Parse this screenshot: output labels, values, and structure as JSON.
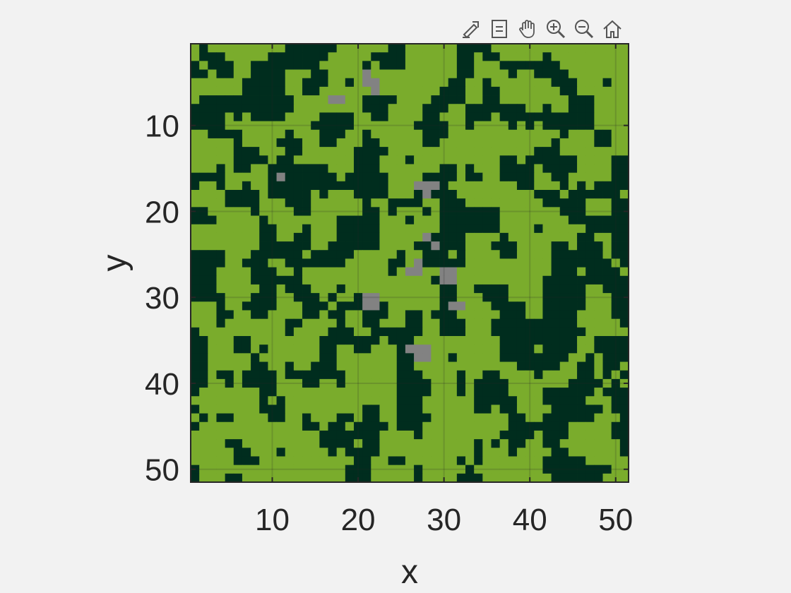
{
  "toolbar": {
    "items": [
      {
        "name": "export-icon"
      },
      {
        "name": "datatip-icon"
      },
      {
        "name": "pan-icon"
      },
      {
        "name": "zoom-in-icon"
      },
      {
        "name": "zoom-out-icon"
      },
      {
        "name": "home-icon"
      }
    ]
  },
  "chart_data": {
    "type": "heatmap",
    "title": "",
    "xlabel": "x",
    "ylabel": "y",
    "xlim": [
      0.5,
      51.5
    ],
    "ylim": [
      0.5,
      51.5
    ],
    "y_direction": "reverse",
    "xticks": [
      10,
      20,
      30,
      40,
      50
    ],
    "yticks": [
      10,
      20,
      30,
      40,
      50
    ],
    "grid": true,
    "grid_size": [
      51,
      51
    ],
    "color_map": {
      "0": "#7aac2c",
      "1": "#002d1e",
      "2": "#828282"
    },
    "dark_fraction": 0.42,
    "gray_cells": [
      [
        21,
        4
      ],
      [
        21,
        5
      ],
      [
        22,
        5
      ],
      [
        22,
        6
      ],
      [
        17,
        7
      ],
      [
        18,
        7
      ],
      [
        11,
        16
      ],
      [
        27,
        17
      ],
      [
        28,
        17
      ],
      [
        29,
        17
      ],
      [
        28,
        18
      ],
      [
        28,
        23
      ],
      [
        29,
        24
      ],
      [
        27,
        26
      ],
      [
        26,
        27
      ],
      [
        27,
        27
      ],
      [
        30,
        27
      ],
      [
        31,
        27
      ],
      [
        30,
        28
      ],
      [
        31,
        28
      ],
      [
        21,
        30
      ],
      [
        22,
        30
      ],
      [
        21,
        31
      ],
      [
        22,
        31
      ],
      [
        31,
        31
      ],
      [
        32,
        31
      ],
      [
        26,
        36
      ],
      [
        27,
        36
      ],
      [
        28,
        36
      ],
      [
        27,
        37
      ],
      [
        28,
        37
      ]
    ]
  }
}
